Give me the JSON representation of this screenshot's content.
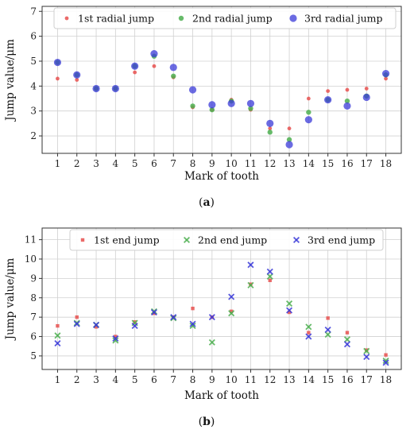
{
  "chart_data": [
    {
      "type": "scatter",
      "caption_letter": "a",
      "xlabel": "Mark of tooth",
      "ylabel": "Jump value/μm",
      "x": [
        1,
        2,
        3,
        4,
        5,
        6,
        7,
        8,
        9,
        10,
        11,
        12,
        13,
        14,
        15,
        16,
        17,
        18
      ],
      "xlim": [
        0.2,
        18.8
      ],
      "ylim": [
        1.3,
        7.2
      ],
      "yticks": [
        2,
        3,
        4,
        5,
        6,
        7
      ],
      "grid": true,
      "legend_position": "top",
      "series": [
        {
          "name": "1st radial jump",
          "color": "#e8504f",
          "marker": "small-dot",
          "values": [
            4.3,
            4.25,
            3.9,
            3.9,
            4.55,
            4.8,
            4.35,
            3.15,
            3.05,
            3.45,
            3.05,
            2.3,
            2.3,
            3.5,
            3.8,
            3.85,
            3.9,
            4.3
          ]
        },
        {
          "name": "2nd radial jump",
          "color": "#4caf50",
          "marker": "dot",
          "values": [
            4.95,
            4.45,
            3.9,
            3.9,
            4.8,
            5.2,
            4.4,
            3.2,
            3.05,
            3.4,
            3.1,
            2.15,
            1.85,
            2.95,
            3.45,
            3.4,
            3.6,
            4.45
          ]
        },
        {
          "name": "3rd radial jump",
          "color": "#3a3ad8",
          "marker": "big-dot",
          "values": [
            4.95,
            4.45,
            3.9,
            3.9,
            4.8,
            5.3,
            4.75,
            3.85,
            3.25,
            3.3,
            3.3,
            2.5,
            1.65,
            2.65,
            3.45,
            3.2,
            3.55,
            4.5
          ]
        }
      ]
    },
    {
      "type": "scatter",
      "caption_letter": "b",
      "xlabel": "Mark of tooth",
      "ylabel": "Jump value/μm",
      "x": [
        1,
        2,
        3,
        4,
        5,
        6,
        7,
        8,
        9,
        10,
        11,
        12,
        13,
        14,
        15,
        16,
        17,
        18
      ],
      "xlim": [
        0.2,
        18.8
      ],
      "ylim": [
        4.3,
        11.6
      ],
      "yticks": [
        5,
        6,
        7,
        8,
        9,
        10,
        11
      ],
      "grid": true,
      "legend_position": "top",
      "series": [
        {
          "name": "1st end jump",
          "color": "#e8504f",
          "marker": "small-square",
          "values": [
            6.55,
            7.0,
            6.5,
            6.0,
            6.75,
            7.2,
            7.0,
            7.45,
            7.0,
            7.3,
            8.7,
            8.9,
            7.25,
            6.2,
            6.95,
            6.2,
            5.3,
            5.05
          ]
        },
        {
          "name": "2nd end jump",
          "color": "#4caf50",
          "marker": "x",
          "values": [
            6.05,
            6.7,
            6.6,
            5.8,
            6.7,
            7.3,
            6.95,
            6.55,
            5.7,
            7.2,
            8.65,
            9.1,
            7.7,
            6.5,
            6.1,
            5.85,
            5.25,
            4.75
          ]
        },
        {
          "name": "3rd end jump",
          "color": "#3a3ad8",
          "marker": "x",
          "values": [
            5.65,
            6.65,
            6.6,
            5.9,
            6.55,
            7.25,
            7.0,
            6.65,
            7.0,
            8.05,
            9.7,
            9.35,
            7.35,
            6.0,
            6.35,
            5.6,
            4.95,
            4.65
          ]
        }
      ]
    }
  ]
}
